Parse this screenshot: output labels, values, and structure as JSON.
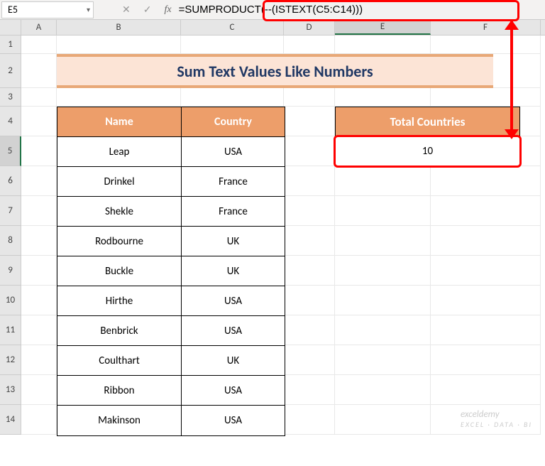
{
  "nameBox": {
    "value": "E5"
  },
  "fxControls": {
    "down": "▾",
    "cancel": "✕",
    "confirm": "✓",
    "fx": "fx"
  },
  "formula": "=SUMPRODUCT(--(ISTEXT(C5:C14)))",
  "columns": [
    "A",
    "B",
    "C",
    "D",
    "E",
    "F"
  ],
  "rows": [
    "1",
    "2",
    "3",
    "4",
    "5",
    "6",
    "7",
    "8",
    "9",
    "10",
    "11",
    "12",
    "13",
    "14"
  ],
  "activeCol": "E",
  "activeRow": "5",
  "title": "Sum Text Values Like Numbers",
  "table": {
    "headers": {
      "name": "Name",
      "country": "Country"
    },
    "data": [
      {
        "name": "Leap",
        "country": "USA"
      },
      {
        "name": "Drinkel",
        "country": "France"
      },
      {
        "name": "Shekle",
        "country": "France"
      },
      {
        "name": "Rodbourne",
        "country": "UK"
      },
      {
        "name": "Buckle",
        "country": "UK"
      },
      {
        "name": "Hirthe",
        "country": "USA"
      },
      {
        "name": "Benbrick",
        "country": "USA"
      },
      {
        "name": "Coulthart",
        "country": "UK"
      },
      {
        "name": "Ribbon",
        "country": "USA"
      },
      {
        "name": "Makinson",
        "country": "USA"
      }
    ]
  },
  "result": {
    "header": "Total Countries",
    "value": "10"
  },
  "colors": {
    "headerBg": "#ed9e6a",
    "headerText": "#ffffff",
    "titleBg": "#fce4d6",
    "titleBorder": "#e8a877",
    "titleText": "#203864",
    "highlight": "#ff0000"
  },
  "watermark": {
    "main": "exceldemy",
    "sub": "EXCEL · DATA · BI"
  }
}
